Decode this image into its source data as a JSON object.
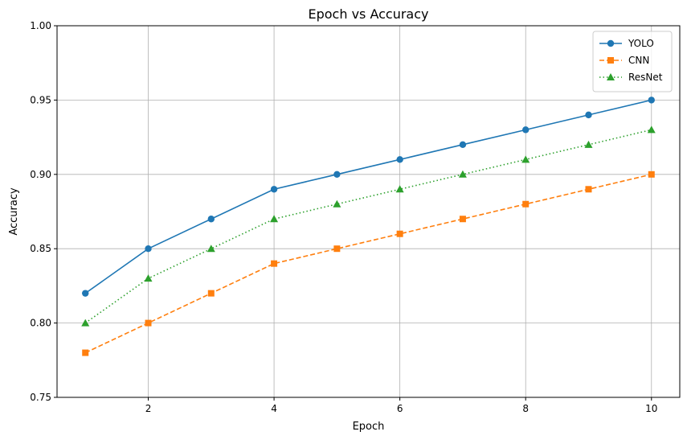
{
  "chart_data": {
    "type": "line",
    "title": "Epoch vs Accuracy",
    "xlabel": "Epoch",
    "ylabel": "Accuracy",
    "x": [
      1,
      2,
      3,
      4,
      5,
      6,
      7,
      8,
      9,
      10
    ],
    "xlim": [
      0.55,
      10.45
    ],
    "ylim": [
      0.75,
      1.0
    ],
    "xticks": [
      2,
      4,
      6,
      8,
      10
    ],
    "xtick_labels": [
      "2",
      "4",
      "6",
      "8",
      "10"
    ],
    "yticks": [
      0.75,
      0.8,
      0.85,
      0.9,
      0.95,
      1.0
    ],
    "ytick_labels": [
      "0.75",
      "0.80",
      "0.85",
      "0.90",
      "0.95",
      "1.00"
    ],
    "grid": true,
    "legend_position": "top-right",
    "series": [
      {
        "name": "YOLO",
        "values": [
          0.82,
          0.85,
          0.87,
          0.89,
          0.9,
          0.91,
          0.92,
          0.93,
          0.94,
          0.95
        ],
        "color": "#1f77b4",
        "marker": "circle",
        "line_style": "solid"
      },
      {
        "name": "CNN",
        "values": [
          0.78,
          0.8,
          0.82,
          0.84,
          0.85,
          0.86,
          0.87,
          0.88,
          0.89,
          0.9
        ],
        "color": "#ff7f0e",
        "marker": "square",
        "line_style": "dashed"
      },
      {
        "name": "ResNet",
        "values": [
          0.8,
          0.83,
          0.85,
          0.87,
          0.88,
          0.89,
          0.9,
          0.91,
          0.92,
          0.93
        ],
        "color": "#2ca02c",
        "marker": "triangle",
        "line_style": "dotted"
      }
    ]
  }
}
